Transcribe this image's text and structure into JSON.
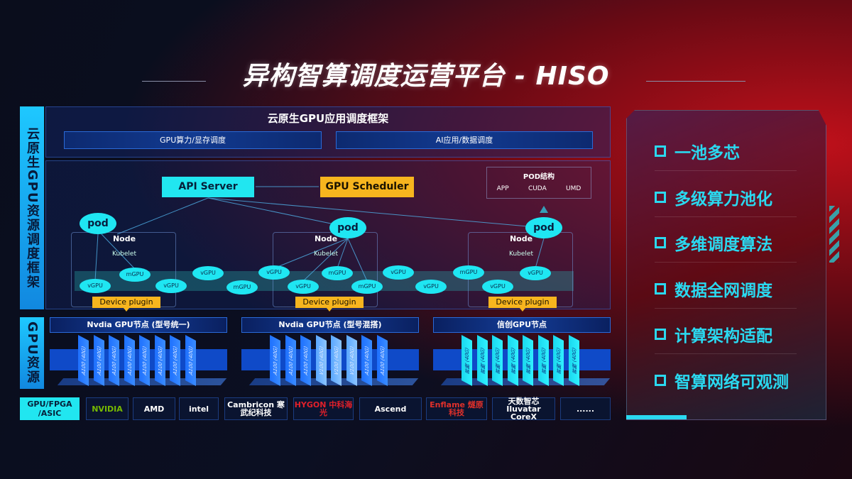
{
  "title": "异构智算调度运营平台 - HISO",
  "side_labels": {
    "top": "云原生GPU资源调度框架",
    "bottom": "GPU资源"
  },
  "framework": {
    "title": "云原生GPU应用调度框架",
    "bars": [
      "GPU算力/显存调度",
      "AI应用/数据调度"
    ]
  },
  "api_server": "API Server",
  "gpu_scheduler": "GPU Scheduler",
  "pod_structure": {
    "title": "POD结构",
    "items": [
      "APP",
      "CUDA",
      "UMD"
    ]
  },
  "nodes": [
    {
      "label": "Node",
      "kubelet": "Kubelet",
      "pod": "pod",
      "plugin": "Device plugin"
    },
    {
      "label": "Node",
      "kubelet": "Kubelet",
      "pod": "pod",
      "plugin": "Device plugin"
    },
    {
      "label": "Node",
      "kubelet": "Kubelet",
      "pod": "pod",
      "plugin": "Device plugin"
    }
  ],
  "virtual_gpus": [
    "vGPU",
    "mGPU",
    "vGPU",
    "vGPU",
    "mGPU",
    "vGPU",
    "vGPU",
    "mGPU",
    "mGPU",
    "vGPU",
    "vGPU",
    "mGPU",
    "vGPU",
    "vGPU"
  ],
  "gpu_groups": [
    {
      "title": "Nvdia GPU节点 (型号统一)",
      "chips": [
        "A100 (40G)",
        "A100 (40G)",
        "A100 (40G)",
        "A100 (40G)",
        "A100 (40G)",
        "A100 (40G)",
        "A100 (40G)",
        "A100 (40G)"
      ]
    },
    {
      "title": "Nvdia GPU节点 (型号混搭)",
      "chips": [
        "A100 (40G)",
        "A100 (40G)",
        "A100 (40G)",
        "V100 (40G)",
        "V100 (40G)",
        "V100 (40G)",
        "A100 (40G)",
        "A100 (40G)"
      ]
    },
    {
      "title": "信创GPU节点",
      "chips": [
        "昇腾 (40G)",
        "昇腾 (40G)",
        "昇腾 (40G)",
        "昇腾 (40G)",
        "昇腾 (40G)",
        "昇腾 (40G)",
        "昇腾 (40G)",
        "昇腾 (40G)"
      ]
    }
  ],
  "vendor_label": "GPU/FPGA /ASIC",
  "vendors": [
    {
      "name": "NVIDIA",
      "color": "#76b900"
    },
    {
      "name": "AMD",
      "color": "#ffffff"
    },
    {
      "name": "intel",
      "color": "#ffffff"
    },
    {
      "name": "Cambricon 寒武纪科技",
      "color": "#ffffff"
    },
    {
      "name": "HYGON 中科海光",
      "color": "#e0202a"
    },
    {
      "name": "Ascend",
      "color": "#ffffff"
    },
    {
      "name": "Enflame 燧原科技",
      "color": "#e0302a"
    },
    {
      "name": "天数智芯 Iluvatar CoreX",
      "color": "#ffffff"
    },
    {
      "name": "......",
      "color": "#ffffff"
    }
  ],
  "features": [
    "一池多芯",
    "多级算力池化",
    "多维调度算法",
    "数据全网调度",
    "计算架构适配",
    "智算网络可观测"
  ]
}
